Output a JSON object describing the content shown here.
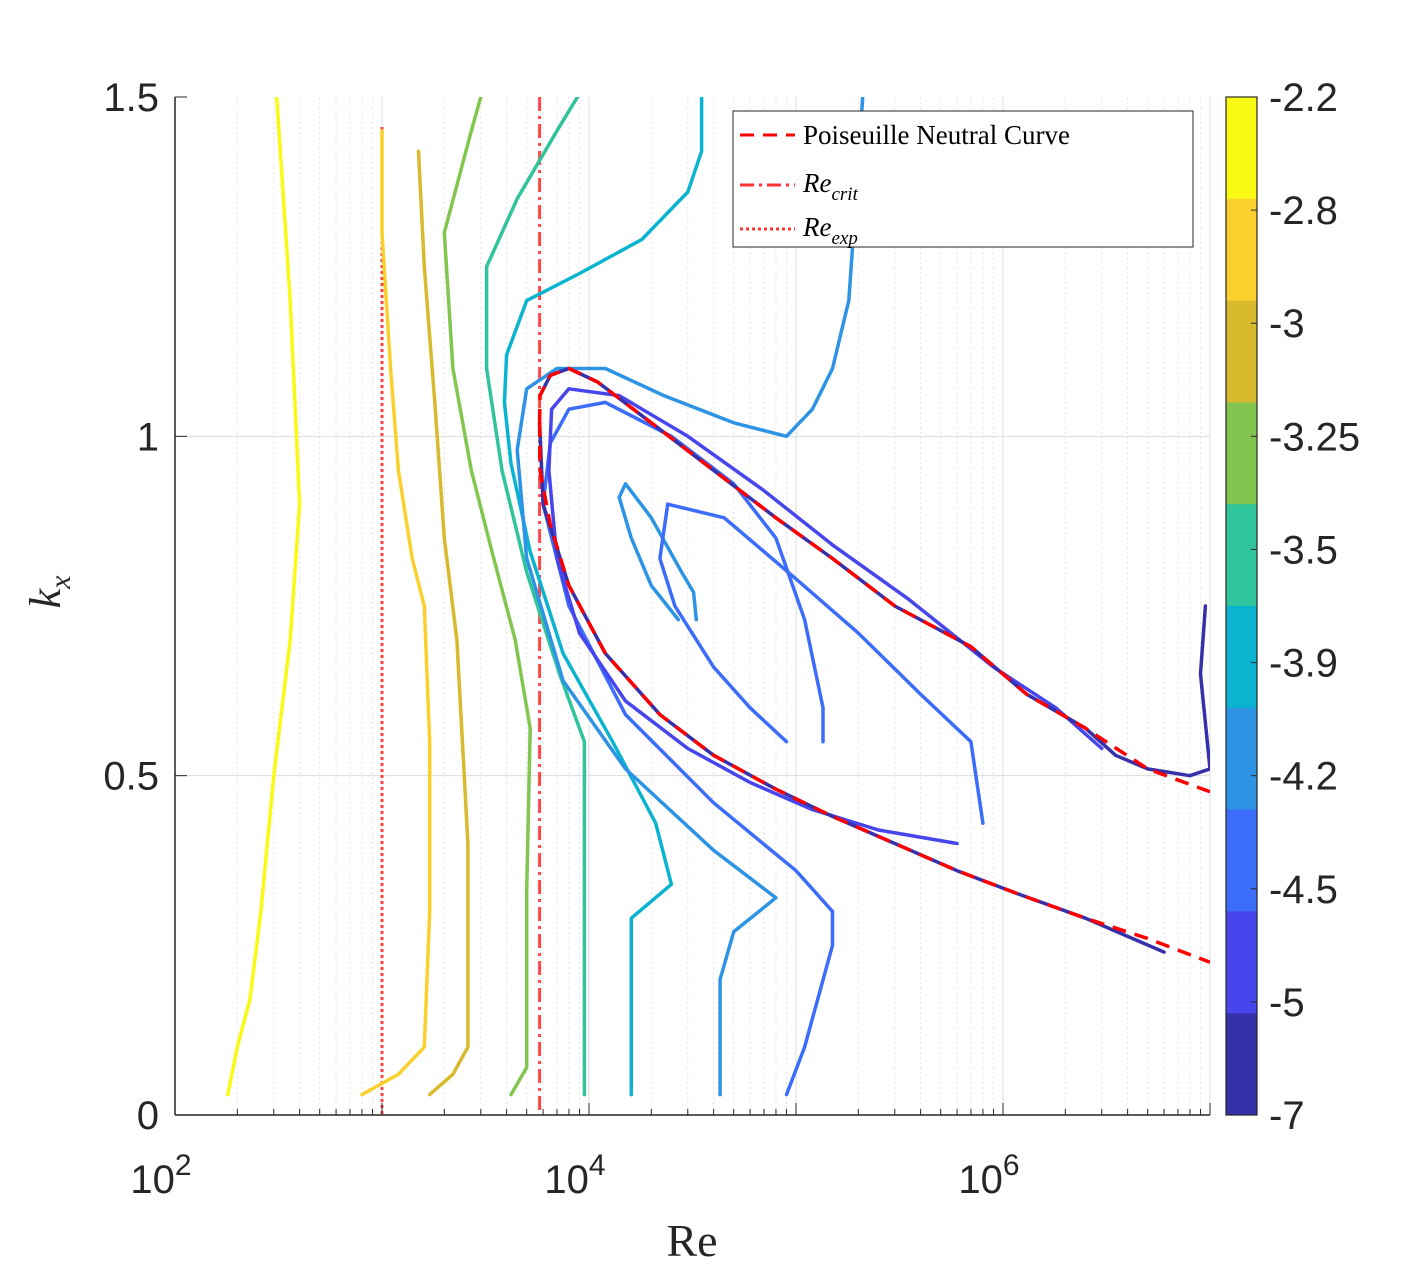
{
  "chart_data": {
    "type": "contour",
    "xlabel": "Re",
    "ylabel": "k_x",
    "xscale": "log",
    "xlim": [
      100,
      15000000
    ],
    "ylim": [
      0,
      1.5
    ],
    "xticks": [
      {
        "value": 100,
        "base": "10",
        "exp": "2"
      },
      {
        "value": 10000,
        "base": "10",
        "exp": "4"
      },
      {
        "value": 1000000,
        "base": "10",
        "exp": "6"
      }
    ],
    "yticks": [
      {
        "value": 0,
        "label": "0"
      },
      {
        "value": 0.5,
        "label": "0.5"
      },
      {
        "value": 1,
        "label": "1"
      },
      {
        "value": 1.5,
        "label": "1.5"
      }
    ],
    "colorbar": {
      "labels": [
        "-2.2",
        "-2.8",
        "-3",
        "-3.25",
        "-3.5",
        "-3.9",
        "-4.2",
        "-4.5",
        "-5",
        "-7"
      ],
      "colors": [
        "#f9fa14",
        "#fcd02c",
        "#d8ba2f",
        "#82c64f",
        "#2fc49b",
        "#0ab4d0",
        "#2d93e4",
        "#3c6cfa",
        "#4646ec",
        "#3630aa"
      ]
    },
    "legend": {
      "position": "top-right",
      "entries": [
        {
          "label": "Poiseuille Neutral Curve",
          "style": "dashed",
          "color": "#ff0000"
        },
        {
          "label": "Re",
          "sub": "crit",
          "style": "dash-dot",
          "color": "#ff3333"
        },
        {
          "label": "Re",
          "sub": "exp",
          "style": "dotted",
          "color": "#ff3333"
        }
      ]
    },
    "reference_lines": {
      "Re_crit": 5772,
      "Re_exp": 1000
    },
    "neutral_curve": [
      [
        5772,
        1.02
      ],
      [
        5800,
        0.95
      ],
      [
        6500,
        0.87
      ],
      [
        8000,
        0.78
      ],
      [
        12000,
        0.68
      ],
      [
        22000,
        0.59
      ],
      [
        40000,
        0.53
      ],
      [
        80000,
        0.48
      ],
      [
        150000,
        0.44
      ],
      [
        300000,
        0.4
      ],
      [
        600000,
        0.36
      ],
      [
        1200000,
        0.325
      ],
      [
        2500000,
        0.29
      ],
      [
        5000000,
        0.26
      ],
      [
        10000000,
        0.225
      ],
      [
        5800,
        1.06
      ],
      [
        6500,
        1.09
      ],
      [
        8000,
        1.1
      ],
      [
        11000,
        1.08
      ],
      [
        20000,
        1.02
      ],
      [
        40000,
        0.95
      ],
      [
        80000,
        0.88
      ],
      [
        150000,
        0.82
      ],
      [
        300000,
        0.75
      ],
      [
        700000,
        0.69
      ],
      [
        1300000,
        0.62
      ],
      [
        2500000,
        0.57
      ],
      [
        5000000,
        0.51
      ],
      [
        14000000,
        0.46
      ]
    ],
    "contours": [
      {
        "level": "-2.2",
        "color": "#f9fa14",
        "points": [
          [
            180,
            0.03
          ],
          [
            200,
            0.1
          ],
          [
            230,
            0.17
          ],
          [
            260,
            0.3
          ],
          [
            300,
            0.5
          ],
          [
            360,
            0.7
          ],
          [
            400,
            0.9
          ],
          [
            360,
            1.2
          ],
          [
            310,
            1.5
          ]
        ]
      },
      {
        "level": "-2.8",
        "color": "#fcd02c",
        "points": [
          [
            800,
            0.03
          ],
          [
            1200,
            0.06
          ],
          [
            1600,
            0.1
          ],
          [
            1700,
            0.3
          ],
          [
            1700,
            0.55
          ],
          [
            1600,
            0.75
          ],
          [
            1400,
            0.82
          ],
          [
            1200,
            0.95
          ],
          [
            1100,
            1.1
          ],
          [
            1000,
            1.3
          ],
          [
            1000,
            1.45
          ]
        ]
      },
      {
        "level": "-3",
        "color": "#d8ba2f",
        "points": [
          [
            1700,
            0.03
          ],
          [
            2200,
            0.06
          ],
          [
            2600,
            0.1
          ],
          [
            2600,
            0.4
          ],
          [
            2300,
            0.7
          ],
          [
            2000,
            0.85
          ],
          [
            1800,
            1.05
          ],
          [
            1600,
            1.25
          ],
          [
            1500,
            1.42
          ]
        ]
      },
      {
        "level": "-3.25",
        "color": "#82c64f",
        "points": [
          [
            4200,
            0.03
          ],
          [
            5000,
            0.07
          ],
          [
            5000,
            0.33
          ],
          [
            5200,
            0.57
          ],
          [
            4400,
            0.7
          ],
          [
            3400,
            0.83
          ],
          [
            2700,
            0.95
          ],
          [
            2200,
            1.1
          ],
          [
            2000,
            1.3
          ],
          [
            2700,
            1.45
          ],
          [
            3000,
            1.5
          ]
        ]
      },
      {
        "level": "-3.5",
        "color": "#2fc49b",
        "points": [
          [
            9500,
            0.03
          ],
          [
            9500,
            0.55
          ],
          [
            7200,
            0.65
          ],
          [
            5000,
            0.8
          ],
          [
            3800,
            0.95
          ],
          [
            3200,
            1.1
          ],
          [
            3200,
            1.25
          ],
          [
            4500,
            1.35
          ],
          [
            7000,
            1.45
          ],
          [
            8800,
            1.5
          ]
        ]
      },
      {
        "level": "-3.9",
        "color": "#0ab4d0",
        "points": [
          [
            16000,
            0.03
          ],
          [
            16000,
            0.29
          ],
          [
            25000,
            0.34
          ],
          [
            21000,
            0.43
          ],
          [
            13000,
            0.55
          ],
          [
            7500,
            0.68
          ],
          [
            5200,
            0.83
          ],
          [
            4200,
            0.96
          ],
          [
            3900,
            1.05
          ],
          [
            4000,
            1.12
          ],
          [
            5000,
            1.2
          ],
          [
            9000,
            1.24
          ],
          [
            18000,
            1.29
          ],
          [
            30000,
            1.36
          ],
          [
            35000,
            1.42
          ],
          [
            35000,
            1.5
          ]
        ]
      },
      {
        "level": "-4.2",
        "color": "#2d93e4",
        "points": [
          [
            43000,
            0.03
          ],
          [
            43000,
            0.2
          ],
          [
            50000,
            0.27
          ],
          [
            80000,
            0.32
          ],
          [
            40000,
            0.39
          ],
          [
            15000,
            0.51
          ],
          [
            7500,
            0.64
          ],
          [
            5000,
            0.82
          ],
          [
            4500,
            0.98
          ],
          [
            5000,
            1.07
          ],
          [
            7000,
            1.1
          ],
          [
            12000,
            1.1
          ],
          [
            23000,
            1.06
          ],
          [
            50000,
            1.02
          ],
          [
            90000,
            1.0
          ],
          [
            120000,
            1.04
          ],
          [
            150000,
            1.1
          ],
          [
            180000,
            1.2
          ],
          [
            200000,
            1.4
          ],
          [
            210000,
            1.5
          ]
        ]
      },
      {
        "level": "-4.2",
        "color": "#2d93e4",
        "points": [
          [
            27000,
            0.73
          ],
          [
            20000,
            0.78
          ],
          [
            16000,
            0.85
          ],
          [
            14000,
            0.91
          ],
          [
            15000,
            0.93
          ],
          [
            20000,
            0.88
          ],
          [
            28000,
            0.8
          ],
          [
            32000,
            0.77
          ],
          [
            33000,
            0.73
          ]
        ]
      },
      {
        "level": "-4.5",
        "color": "#3c6cfa",
        "points": [
          [
            90000,
            0.03
          ],
          [
            110000,
            0.1
          ],
          [
            150000,
            0.25
          ],
          [
            150000,
            0.3
          ],
          [
            100000,
            0.36
          ],
          [
            40000,
            0.46
          ],
          [
            15000,
            0.59
          ],
          [
            8000,
            0.75
          ],
          [
            6000,
            0.9
          ],
          [
            6500,
            0.99
          ],
          [
            8000,
            1.04
          ],
          [
            12000,
            1.05
          ],
          [
            25000,
            1.0
          ],
          [
            50000,
            0.93
          ],
          [
            80000,
            0.85
          ],
          [
            110000,
            0.73
          ],
          [
            135000,
            0.6
          ],
          [
            135000,
            0.55
          ]
        ]
      },
      {
        "level": "-4.5",
        "color": "#3c6cfa",
        "points": [
          [
            90000,
            0.55
          ],
          [
            60000,
            0.6
          ],
          [
            40000,
            0.66
          ],
          [
            26000,
            0.75
          ],
          [
            22000,
            0.82
          ],
          [
            24000,
            0.9
          ],
          [
            45000,
            0.88
          ],
          [
            100000,
            0.79
          ],
          [
            200000,
            0.71
          ],
          [
            400000,
            0.62
          ],
          [
            700000,
            0.55
          ],
          [
            800000,
            0.43
          ]
        ]
      },
      {
        "level": "-5",
        "color": "#4646ec",
        "points": [
          [
            600000,
            0.4
          ],
          [
            250000,
            0.42
          ],
          [
            120000,
            0.45
          ],
          [
            60000,
            0.49
          ],
          [
            30000,
            0.54
          ],
          [
            15000,
            0.61
          ],
          [
            9000,
            0.71
          ],
          [
            7000,
            0.82
          ],
          [
            6400,
            0.95
          ],
          [
            6600,
            1.04
          ],
          [
            8000,
            1.07
          ],
          [
            14000,
            1.06
          ],
          [
            30000,
            1.0
          ],
          [
            70000,
            0.92
          ],
          [
            150000,
            0.84
          ],
          [
            350000,
            0.76
          ],
          [
            900000,
            0.66
          ],
          [
            1800000,
            0.6
          ],
          [
            3000000,
            0.54
          ]
        ]
      },
      {
        "level": "-7",
        "color": "#3630aa",
        "points": [
          [
            5772,
            1.02
          ],
          [
            6000,
            0.9
          ],
          [
            8000,
            0.78
          ],
          [
            12000,
            0.68
          ],
          [
            22000,
            0.59
          ],
          [
            40000,
            0.53
          ],
          [
            80000,
            0.48
          ],
          [
            150000,
            0.44
          ],
          [
            300000,
            0.4
          ],
          [
            600000,
            0.36
          ],
          [
            1200000,
            0.325
          ],
          [
            2500000,
            0.29
          ],
          [
            6000000,
            0.24
          ]
        ]
      },
      {
        "level": "-7",
        "color": "#3630aa",
        "points": [
          [
            5800,
            1.06
          ],
          [
            6500,
            1.09
          ],
          [
            8000,
            1.1
          ],
          [
            11000,
            1.08
          ],
          [
            20000,
            1.02
          ],
          [
            40000,
            0.95
          ],
          [
            80000,
            0.88
          ],
          [
            150000,
            0.82
          ],
          [
            300000,
            0.75
          ],
          [
            700000,
            0.69
          ],
          [
            1300000,
            0.62
          ],
          [
            2500000,
            0.57
          ],
          [
            3500000,
            0.53
          ],
          [
            5000000,
            0.51
          ],
          [
            8000000,
            0.5
          ],
          [
            10000000,
            0.51
          ],
          [
            9000000,
            0.65
          ],
          [
            9500000,
            0.75
          ]
        ]
      }
    ]
  }
}
